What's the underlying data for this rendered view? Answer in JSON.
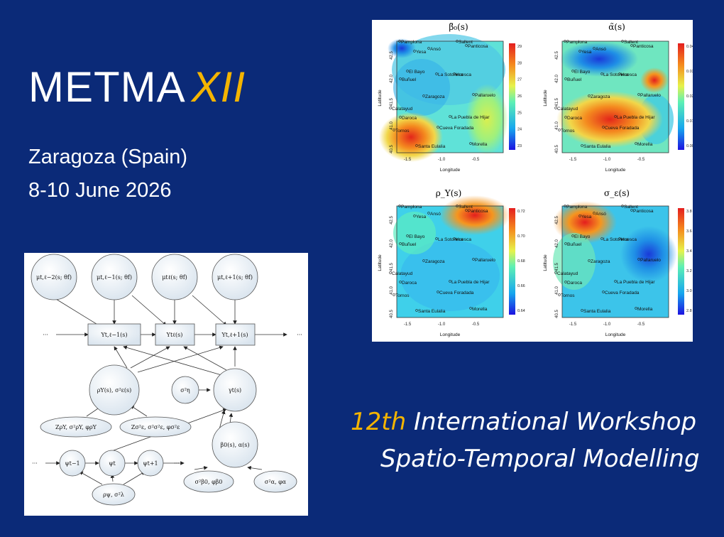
{
  "title": {
    "main": "METMA",
    "roman": "XII"
  },
  "location": "Zaragoza (Spain)",
  "dates": "8-10 June 2026",
  "workshop": {
    "number": "12th",
    "line1_rest": "International Workshop",
    "line2": "Spatio-Temporal Modelling"
  },
  "maps": {
    "panels": [
      {
        "title": "β̃₀(s)",
        "scale": [
          "29",
          "28",
          "27",
          "26",
          "25",
          "24",
          "23"
        ]
      },
      {
        "title": "α̃(s)",
        "scale": [
          "0.04",
          "0.03",
          "0.02",
          "0.01",
          "0.00"
        ]
      },
      {
        "title": "ρ_Y(s)",
        "scale": [
          "0.72",
          "0.70",
          "0.68",
          "0.66",
          "0.64"
        ]
      },
      {
        "title": "σ_ε(s)",
        "scale": [
          "3.8",
          "3.6",
          "3.4",
          "3.2",
          "3.0",
          "2.8"
        ]
      }
    ],
    "x_ticks": [
      "-1.5",
      "-1.0",
      "-0.5"
    ],
    "y_ticks": [
      "42.5",
      "42.0",
      "41.5",
      "41.0",
      "40.5"
    ],
    "xlabel": "Longitude",
    "ylabel": "Latitude",
    "stations": [
      "Pamplona",
      "Yesa",
      "Ansó",
      "Sallent",
      "Panticosa",
      "El Bayo",
      "Buñuel",
      "La Sotonera",
      "Huesca",
      "Zaragoza",
      "Pallaruelo",
      "Calatayud",
      "Daroca",
      "La Puebla de Hijar",
      "Tornos",
      "Cueva Foradada",
      "Morella",
      "Santa Eulalia"
    ]
  },
  "diagram": {
    "top_nodes": [
      "μt,ℓ−2(s; θf)",
      "μt,ℓ−1(s; θf)",
      "μtℓ(s; θf)",
      "μt,ℓ+1(s; θf)"
    ],
    "y_nodes": [
      "Yt,ℓ−1(s)",
      "Ytℓ(s)",
      "Yt,ℓ+1(s)"
    ],
    "ellipsis": "···",
    "rho_node": "ρY(s), σ²ε(s)",
    "sigma_eta": "σ²η",
    "gamma_node": "γt(s)",
    "z_rho": "ZρY, σ²ρY, φρY",
    "z_eps": "Zσ²ε, σ²σ²ε, φσ²ε",
    "beta_alpha": "β0(s), α(s)",
    "psi_nodes": [
      "ψt−1",
      "ψt",
      "ψt+1"
    ],
    "psi_params": "ρψ, σ²λ",
    "beta_params": "σ²β0, φβ0",
    "alpha_params": "σ²α, φα"
  }
}
